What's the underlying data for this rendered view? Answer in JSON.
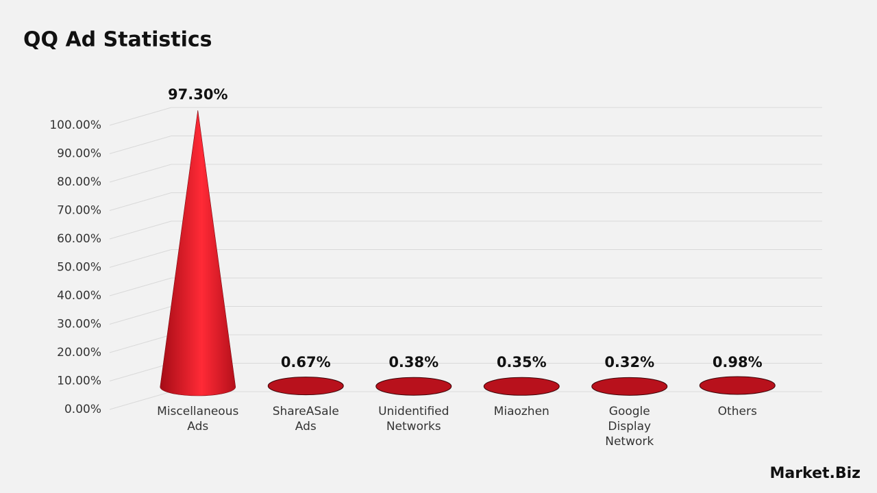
{
  "chart_data": {
    "type": "cone",
    "title": "QQ Ad Statistics",
    "categories": [
      "Miscellaneous Ads",
      "ShareASale Ads",
      "Unidentified Networks",
      "Miaozhen",
      "Google Display Network",
      "Others"
    ],
    "values": [
      97.3,
      0.67,
      0.38,
      0.35,
      0.32,
      0.98
    ],
    "value_labels": [
      "97.30%",
      "0.67%",
      "0.38%",
      "0.35%",
      "0.32%",
      "0.98%"
    ],
    "color": "#e8212e",
    "ylim": [
      0,
      100
    ],
    "yticks": [
      {
        "value": 0,
        "label": "0.00%"
      },
      {
        "value": 10,
        "label": "10.00%"
      },
      {
        "value": 20,
        "label": "20.00%"
      },
      {
        "value": 30,
        "label": "30.00%"
      },
      {
        "value": 40,
        "label": "40.00%"
      },
      {
        "value": 50,
        "label": "50.00%"
      },
      {
        "value": 60,
        "label": "60.00%"
      },
      {
        "value": 70,
        "label": "70.00%"
      },
      {
        "value": 80,
        "label": "80.00%"
      },
      {
        "value": 90,
        "label": "90.00%"
      },
      {
        "value": 100,
        "label": "100.00%"
      }
    ],
    "grid": true,
    "watermark": "Market.Biz"
  }
}
